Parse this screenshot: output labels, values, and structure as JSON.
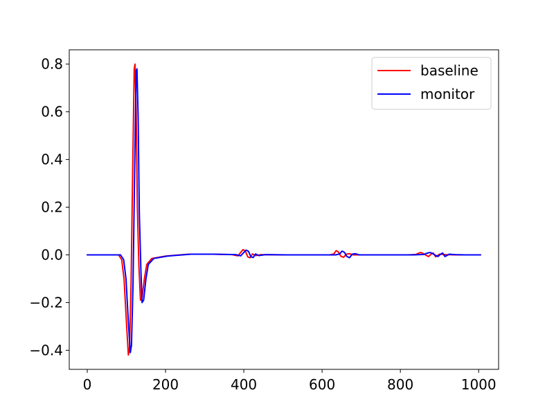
{
  "chart_data": {
    "type": "line",
    "title": "",
    "xlabel": "",
    "ylabel": "",
    "xlim": [
      -46,
      1051
    ],
    "ylim": [
      -0.48,
      0.86
    ],
    "xticks": [
      0,
      200,
      400,
      600,
      800,
      1000
    ],
    "xtick_labels": [
      "0",
      "200",
      "400",
      "600",
      "800",
      "1000"
    ],
    "yticks": [
      -0.4,
      -0.2,
      0.0,
      0.2,
      0.4,
      0.6,
      0.8
    ],
    "ytick_labels": [
      "−0.4",
      "−0.2",
      "0.0",
      "0.2",
      "0.4",
      "0.6",
      "0.8"
    ],
    "grid": false,
    "legend_position": "top-right",
    "series": [
      {
        "name": "baseline",
        "color": "#ff0000",
        "x": [
          0,
          80,
          88,
          94,
          100,
          105,
          108,
          112,
          116,
          120,
          122,
          125,
          128,
          132,
          136,
          140,
          146,
          152,
          165,
          200,
          260,
          320,
          370,
          385,
          392,
          398,
          404,
          410,
          416,
          422,
          430,
          445,
          500,
          560,
          620,
          630,
          636,
          642,
          648,
          655,
          662,
          670,
          680,
          700,
          760,
          820,
          840,
          848,
          852,
          858,
          866,
          872,
          878,
          884,
          890,
          900,
          915,
          940,
          1005
        ],
        "y": [
          0,
          0,
          -0.02,
          -0.1,
          -0.28,
          -0.42,
          -0.39,
          -0.12,
          0.35,
          0.78,
          0.8,
          0.6,
          0.2,
          -0.05,
          -0.19,
          -0.18,
          -0.1,
          -0.04,
          -0.015,
          -0.005,
          0.003,
          0.003,
          0.001,
          -0.004,
          0.01,
          0.022,
          0.016,
          -0.008,
          -0.012,
          0.004,
          -0.003,
          0.001,
          0.0,
          0.0,
          0.0,
          0.004,
          0.018,
          0.012,
          -0.006,
          -0.01,
          0.003,
          0.005,
          0.0,
          0.0,
          0.0,
          0.0,
          0.002,
          0.008,
          0.01,
          0.006,
          -0.002,
          -0.007,
          0.002,
          0.008,
          -0.008,
          0.003,
          0.001,
          0.0,
          0.0
        ]
      },
      {
        "name": "monitor",
        "color": "#0000ff",
        "x": [
          0,
          85,
          93,
          99,
          105,
          110,
          113,
          117,
          121,
          125,
          127,
          130,
          133,
          137,
          140,
          144,
          150,
          156,
          170,
          205,
          265,
          325,
          380,
          392,
          400,
          406,
          412,
          418,
          424,
          430,
          438,
          455,
          510,
          570,
          635,
          645,
          651,
          657,
          663,
          670,
          677,
          685,
          695,
          715,
          775,
          835,
          860,
          870,
          876,
          882,
          890,
          896,
          902,
          908,
          914,
          925,
          940,
          965,
          1005
        ],
        "y": [
          0,
          0,
          -0.02,
          -0.1,
          -0.28,
          -0.41,
          -0.38,
          -0.12,
          0.34,
          0.77,
          0.78,
          0.58,
          0.18,
          -0.06,
          -0.2,
          -0.19,
          -0.1,
          -0.04,
          -0.015,
          -0.005,
          0.003,
          0.003,
          0.001,
          -0.004,
          0.01,
          0.02,
          0.015,
          -0.008,
          -0.011,
          0.004,
          -0.003,
          0.001,
          0.0,
          0.0,
          0.0,
          0.004,
          0.016,
          0.011,
          -0.006,
          -0.012,
          0.003,
          0.005,
          0.0,
          0.0,
          0.0,
          0.0,
          0.002,
          0.008,
          0.01,
          0.006,
          -0.002,
          -0.007,
          0.002,
          0.008,
          -0.007,
          0.003,
          0.001,
          0.0,
          0.0
        ]
      }
    ]
  }
}
